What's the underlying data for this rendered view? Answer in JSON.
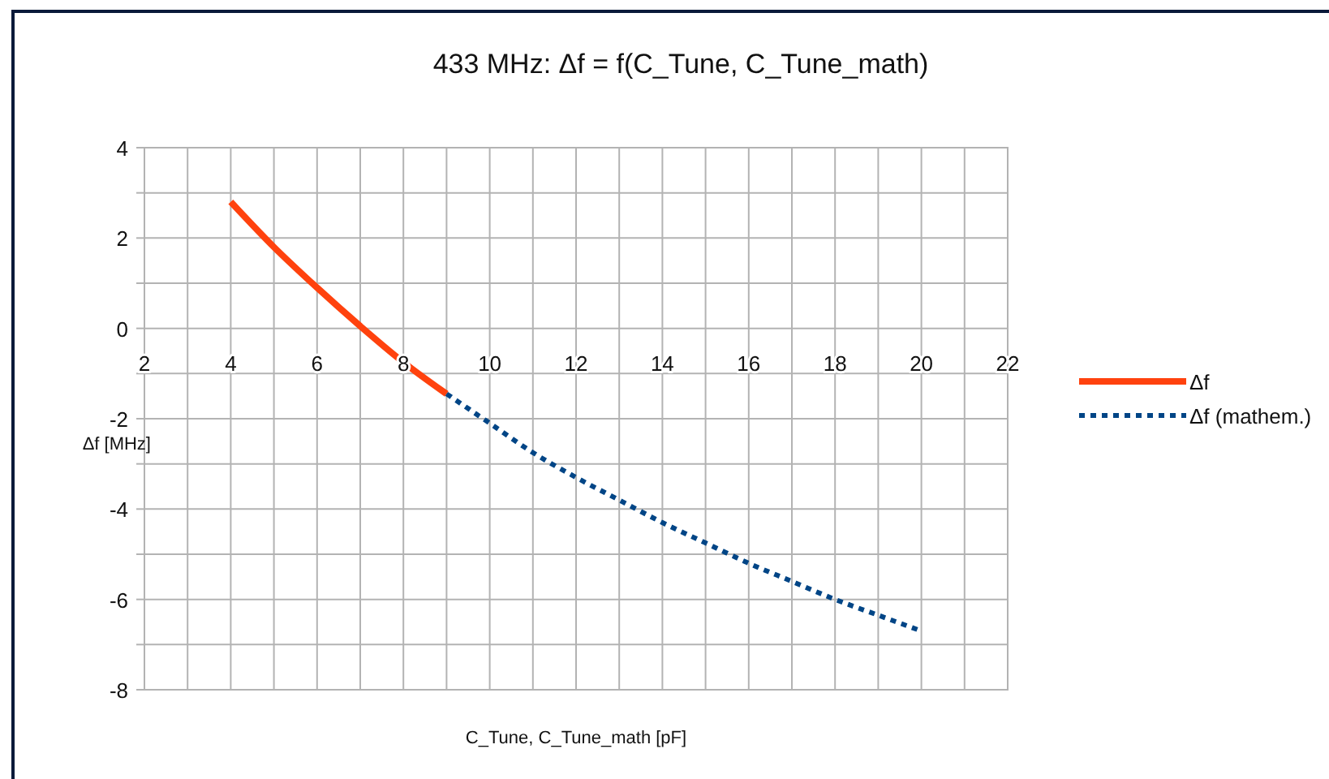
{
  "chart_data": {
    "type": "line",
    "title": "433 MHz: Δf = f(C_Tune, C_Tune_math)",
    "xlabel": "C_Tune, C_Tune_math [pF]",
    "ylabel": "Δf [MHz]",
    "xlim": [
      2,
      22
    ],
    "ylim": [
      -8,
      4
    ],
    "xticks": [
      2,
      {
        "value": 3,
        "label": null
      },
      4,
      {
        "value": 5,
        "label": null
      },
      6,
      {
        "value": 7,
        "label": null
      },
      8,
      {
        "value": 9,
        "label": null
      },
      10,
      {
        "value": 11,
        "label": null
      },
      12,
      {
        "value": 13,
        "label": null
      },
      14,
      {
        "value": 15,
        "label": null
      },
      16,
      {
        "value": 17,
        "label": null
      },
      18,
      {
        "value": 19,
        "label": null
      },
      20,
      {
        "value": 21,
        "label": null
      },
      22
    ],
    "yticks": [
      -8,
      {
        "value": -7,
        "label": null
      },
      -6,
      {
        "value": -5,
        "label": null
      },
      -4,
      {
        "value": -3,
        "label": null
      },
      -2,
      {
        "value": -1,
        "label": null
      },
      0,
      {
        "value": 1,
        "label": null
      },
      2,
      {
        "value": 3,
        "label": null
      },
      4
    ],
    "grid": true,
    "legend": "right",
    "marker": "none",
    "series": [
      {
        "name": "Δf",
        "color": "#ff420e",
        "line_style": "solid",
        "x": [
          4,
          5,
          6,
          7,
          8,
          9
        ],
        "values": [
          2.8,
          1.8,
          0.9,
          0.05,
          -0.75,
          -1.45
        ]
      },
      {
        "name": "Δf (mathem.)",
        "color": "#004586",
        "line_style": "dotted",
        "x": [
          9,
          10,
          11,
          12,
          13,
          14,
          15,
          16,
          17,
          18,
          19,
          20
        ],
        "values": [
          -1.45,
          -2.1,
          -2.75,
          -3.3,
          -3.8,
          -4.3,
          -4.75,
          -5.2,
          -5.6,
          -6.0,
          -6.35,
          -6.7
        ]
      }
    ]
  }
}
